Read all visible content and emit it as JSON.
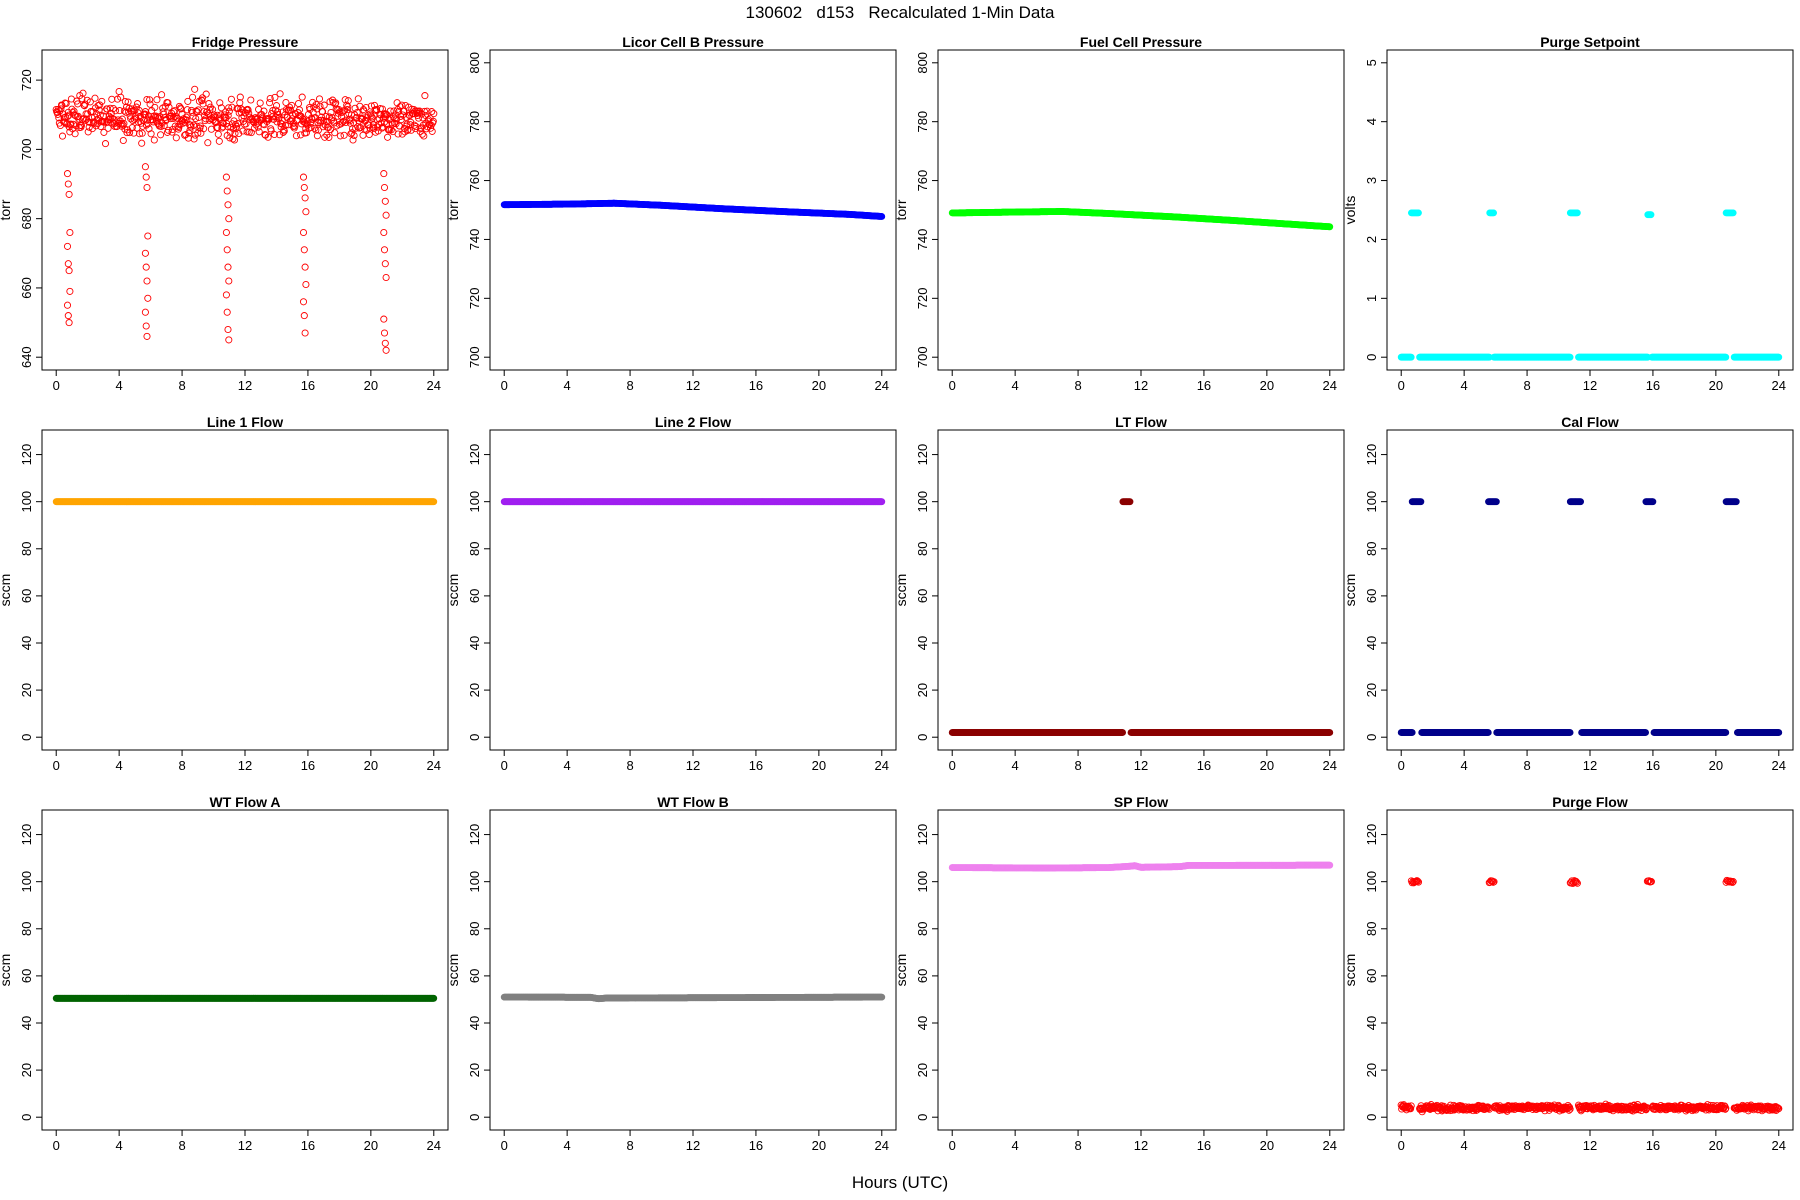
{
  "figure": {
    "title": "130602   d153   Recalculated 1-Min Data",
    "xlabel": "Hours (UTC)"
  },
  "chart_data": [
    {
      "type": "scatter",
      "title": "Fridge Pressure",
      "ylabel": "torr",
      "color": "#ff0000",
      "marker": "open-circle",
      "xlim": [
        0,
        24
      ],
      "ylim": [
        640,
        725
      ],
      "xticks": [
        0,
        4,
        8,
        12,
        16,
        20,
        24
      ],
      "yticks": [
        640,
        660,
        680,
        700,
        720
      ],
      "noise": {
        "base": 709,
        "spread": 7,
        "step_minutes": 2
      },
      "dips": [
        {
          "x": 0.8,
          "values": [
            693,
            690,
            687,
            676,
            672,
            667,
            665,
            659,
            655,
            652,
            650
          ]
        },
        {
          "x": 5.75,
          "values": [
            695,
            692,
            689,
            675,
            670,
            666,
            662,
            657,
            653,
            649,
            646
          ]
        },
        {
          "x": 10.9,
          "values": [
            692,
            688,
            684,
            680,
            676,
            671,
            666,
            662,
            658,
            653,
            648,
            645
          ]
        },
        {
          "x": 15.8,
          "values": [
            692,
            689,
            686,
            682,
            676,
            671,
            666,
            661,
            656,
            652,
            647
          ]
        },
        {
          "x": 20.9,
          "values": [
            693,
            689,
            685,
            681,
            676,
            671,
            667,
            663,
            651,
            647,
            644,
            642
          ]
        }
      ]
    },
    {
      "type": "line",
      "title": "Licor Cell B Pressure",
      "ylabel": "torr",
      "color": "#0000ff",
      "marker": "filled-circle",
      "xlim": [
        0,
        24
      ],
      "ylim": [
        700,
        800
      ],
      "xticks": [
        0,
        4,
        8,
        12,
        16,
        20,
        24
      ],
      "yticks": [
        700,
        720,
        740,
        760,
        780,
        800
      ],
      "x": [
        0,
        4,
        7,
        10,
        14,
        18,
        22,
        24
      ],
      "y": [
        751.8,
        752.0,
        752.3,
        751.6,
        750.4,
        749.4,
        748.5,
        747.8
      ]
    },
    {
      "type": "line",
      "title": "Fuel Cell Pressure",
      "ylabel": "torr",
      "color": "#00ff00",
      "marker": "filled-circle",
      "xlim": [
        0,
        24
      ],
      "ylim": [
        700,
        800
      ],
      "xticks": [
        0,
        4,
        8,
        12,
        16,
        20,
        24
      ],
      "yticks": [
        700,
        720,
        740,
        760,
        780,
        800
      ],
      "x": [
        0,
        4,
        7,
        10,
        14,
        18,
        22,
        24
      ],
      "y": [
        749.0,
        749.3,
        749.5,
        748.8,
        747.7,
        746.4,
        745.0,
        744.3
      ]
    },
    {
      "type": "scatter",
      "title": "Purge Setpoint",
      "ylabel": "volts",
      "color": "#00ffff",
      "marker": "filled-circle",
      "xlim": [
        0,
        24
      ],
      "ylim": [
        0,
        5
      ],
      "xticks": [
        0,
        4,
        8,
        12,
        16,
        20,
        24
      ],
      "yticks": [
        0,
        1,
        2,
        3,
        4,
        5
      ],
      "baseline": 0,
      "pulses": [
        {
          "x": 0.9,
          "width": 0.5,
          "value": 2.45
        },
        {
          "x": 5.75,
          "width": 0.25,
          "value": 2.45
        },
        {
          "x": 11.0,
          "width": 0.5,
          "value": 2.45
        },
        {
          "x": 15.8,
          "width": 0.25,
          "value": 2.42
        },
        {
          "x": 20.9,
          "width": 0.5,
          "value": 2.45
        }
      ]
    },
    {
      "type": "line",
      "title": "Line 1 Flow",
      "ylabel": "sccm",
      "color": "#ffa500",
      "marker": "filled-circle",
      "xlim": [
        0,
        24
      ],
      "ylim": [
        0,
        125
      ],
      "xticks": [
        0,
        4,
        8,
        12,
        16,
        20,
        24
      ],
      "yticks": [
        0,
        20,
        40,
        60,
        80,
        100,
        120
      ],
      "x": [
        0,
        24
      ],
      "y": [
        100,
        100
      ]
    },
    {
      "type": "line",
      "title": "Line 2 Flow",
      "ylabel": "sccm",
      "color": "#a020f0",
      "marker": "filled-circle",
      "xlim": [
        0,
        24
      ],
      "ylim": [
        0,
        125
      ],
      "xticks": [
        0,
        4,
        8,
        12,
        16,
        20,
        24
      ],
      "yticks": [
        0,
        20,
        40,
        60,
        80,
        100,
        120
      ],
      "x": [
        0,
        24
      ],
      "y": [
        100,
        100
      ]
    },
    {
      "type": "scatter",
      "title": "LT Flow",
      "ylabel": "sccm",
      "color": "#8b0000",
      "marker": "filled-circle",
      "xlim": [
        0,
        24
      ],
      "ylim": [
        0,
        125
      ],
      "xticks": [
        0,
        4,
        8,
        12,
        16,
        20,
        24
      ],
      "yticks": [
        0,
        20,
        40,
        60,
        80,
        100,
        120
      ],
      "baseline": 2,
      "pulses": [
        {
          "x": 11.1,
          "width": 0.5,
          "value": 100
        }
      ]
    },
    {
      "type": "scatter",
      "title": "Cal Flow",
      "ylabel": "sccm",
      "color": "#00008b",
      "marker": "filled-circle",
      "xlim": [
        0,
        24
      ],
      "ylim": [
        0,
        125
      ],
      "xticks": [
        0,
        4,
        8,
        12,
        16,
        20,
        24
      ],
      "yticks": [
        0,
        20,
        40,
        60,
        80,
        100,
        120
      ],
      "baseline": 2,
      "pulses": [
        {
          "x": 1.0,
          "width": 0.6,
          "value": 100
        },
        {
          "x": 5.8,
          "width": 0.5,
          "value": 100
        },
        {
          "x": 11.1,
          "width": 0.7,
          "value": 100
        },
        {
          "x": 15.8,
          "width": 0.5,
          "value": 100
        },
        {
          "x": 21.0,
          "width": 0.7,
          "value": 100
        }
      ]
    },
    {
      "type": "line",
      "title": "WT Flow A",
      "ylabel": "sccm",
      "color": "#006400",
      "marker": "filled-circle",
      "xlim": [
        0,
        24
      ],
      "ylim": [
        0,
        125
      ],
      "xticks": [
        0,
        4,
        8,
        12,
        16,
        20,
        24
      ],
      "yticks": [
        0,
        20,
        40,
        60,
        80,
        100,
        120
      ],
      "x": [
        0,
        24
      ],
      "y": [
        50.5,
        50.5
      ]
    },
    {
      "type": "line",
      "title": "WT Flow B",
      "ylabel": "sccm",
      "color": "#808080",
      "marker": "filled-circle",
      "xlim": [
        0,
        24
      ],
      "ylim": [
        0,
        125
      ],
      "xticks": [
        0,
        4,
        8,
        12,
        16,
        20,
        24
      ],
      "yticks": [
        0,
        20,
        40,
        60,
        80,
        100,
        120
      ],
      "x": [
        0,
        5.5,
        6.0,
        6.5,
        24
      ],
      "y": [
        51.0,
        50.9,
        50.3,
        50.6,
        51.0
      ]
    },
    {
      "type": "line",
      "title": "SP Flow",
      "ylabel": "sccm",
      "color": "#ee82ee",
      "marker": "filled-circle",
      "xlim": [
        0,
        24
      ],
      "ylim": [
        0,
        125
      ],
      "xticks": [
        0,
        4,
        8,
        12,
        16,
        20,
        24
      ],
      "yticks": [
        0,
        20,
        40,
        60,
        80,
        100,
        120
      ],
      "x": [
        0,
        6,
        10,
        11.4,
        11.6,
        12,
        14.5,
        15,
        24
      ],
      "y": [
        106.0,
        105.8,
        106.0,
        106.6,
        106.8,
        106.1,
        106.4,
        106.9,
        107.0
      ]
    },
    {
      "type": "scatter",
      "title": "Purge Flow",
      "ylabel": "sccm",
      "color": "#ff0000",
      "marker": "open-circle",
      "xlim": [
        0,
        24
      ],
      "ylim": [
        0,
        125
      ],
      "xticks": [
        0,
        4,
        8,
        12,
        16,
        20,
        24
      ],
      "yticks": [
        0,
        20,
        40,
        60,
        80,
        100,
        120
      ],
      "baseline": 4,
      "baseline_noise": 1.6,
      "pulses": [
        {
          "x": 0.9,
          "width": 0.5,
          "value": 100
        },
        {
          "x": 5.75,
          "width": 0.3,
          "value": 100
        },
        {
          "x": 11.0,
          "width": 0.5,
          "value": 100
        },
        {
          "x": 15.8,
          "width": 0.3,
          "value": 100
        },
        {
          "x": 20.9,
          "width": 0.5,
          "value": 100
        }
      ]
    }
  ]
}
